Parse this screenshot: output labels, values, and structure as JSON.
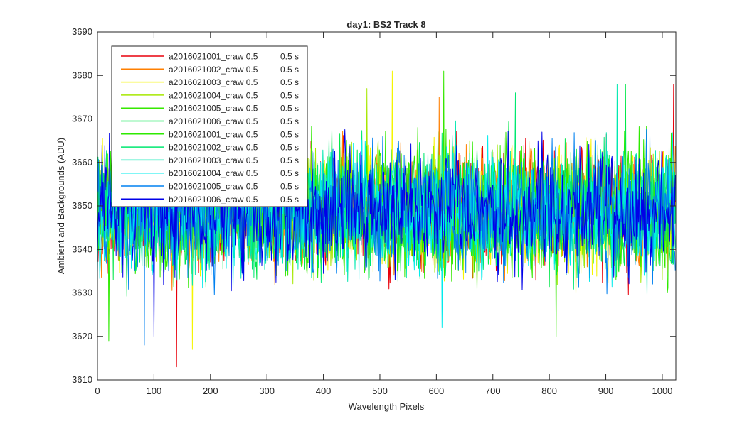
{
  "chart_data": {
    "type": "line",
    "title": "day1: BS2  Track 8",
    "xlabel": "Wavelength Pixels",
    "ylabel": "Ambient and Backgrounds (ADU)",
    "xlim": [
      0,
      1024
    ],
    "ylim": [
      3610,
      3690
    ],
    "xticks": [
      0,
      100,
      200,
      300,
      400,
      500,
      600,
      700,
      800,
      900,
      1000
    ],
    "yticks": [
      3610,
      3620,
      3630,
      3640,
      3650,
      3660,
      3670,
      3680,
      3690
    ],
    "grid": false,
    "legend_position": "top-left",
    "n_points": 1024,
    "noise_summary": {
      "baseline": 3649,
      "typical_min": 3622,
      "typical_max": 3676
    },
    "series": [
      {
        "name": "a2016021001_craw 0.5",
        "exposure": "0.5 s",
        "color": "#e8000b",
        "extremes": [
          {
            "x": 140,
            "y": 3613
          },
          {
            "x": 1020,
            "y": 3678
          }
        ]
      },
      {
        "name": "a2016021002_craw 0.5",
        "exposure": "0.5 s",
        "color": "#ff7f00",
        "extremes": [
          {
            "x": 605,
            "y": 3675
          }
        ]
      },
      {
        "name": "a2016021003_craw 0.5",
        "exposure": "0.5 s",
        "color": "#f5f500",
        "extremes": [
          {
            "x": 522,
            "y": 3681
          },
          {
            "x": 168,
            "y": 3617
          }
        ]
      },
      {
        "name": "a2016021004_craw 0.5",
        "exposure": "0.5 s",
        "color": "#a6e800",
        "extremes": [
          {
            "x": 477,
            "y": 3677
          }
        ]
      },
      {
        "name": "a2016021005_craw 0.5",
        "exposure": "0.5 s",
        "color": "#36e800",
        "extremes": [
          {
            "x": 613,
            "y": 3681
          },
          {
            "x": 812,
            "y": 3620
          }
        ]
      },
      {
        "name": "a2016021006_craw 0.5",
        "exposure": "0.5 s",
        "color": "#00e84a",
        "extremes": [
          {
            "x": 935,
            "y": 3678
          }
        ]
      },
      {
        "name": "b2016021001_craw 0.5",
        "exposure": "0.5 s",
        "color": "#2eea00",
        "extremes": [
          {
            "x": 20,
            "y": 3619
          }
        ]
      },
      {
        "name": "b2016021002_craw 0.5",
        "exposure": "0.5 s",
        "color": "#00e870",
        "extremes": [
          {
            "x": 740,
            "y": 3676
          }
        ]
      },
      {
        "name": "b2016021003_craw 0.5",
        "exposure": "0.5 s",
        "color": "#00e8b0",
        "extremes": [
          {
            "x": 920,
            "y": 3678
          }
        ]
      },
      {
        "name": "b2016021004_craw 0.5",
        "exposure": "0.5 s",
        "color": "#00ecec",
        "extremes": [
          {
            "x": 610,
            "y": 3622
          }
        ]
      },
      {
        "name": "b2016021005_craw 0.5",
        "exposure": "0.5 s",
        "color": "#0080f0",
        "extremes": [
          {
            "x": 83,
            "y": 3618
          }
        ]
      },
      {
        "name": "b2016021006_craw 0.5",
        "exposure": "0.5 s",
        "color": "#0000e8",
        "extremes": [
          {
            "x": 8,
            "y": 3664
          },
          {
            "x": 100,
            "y": 3620
          }
        ]
      }
    ]
  }
}
